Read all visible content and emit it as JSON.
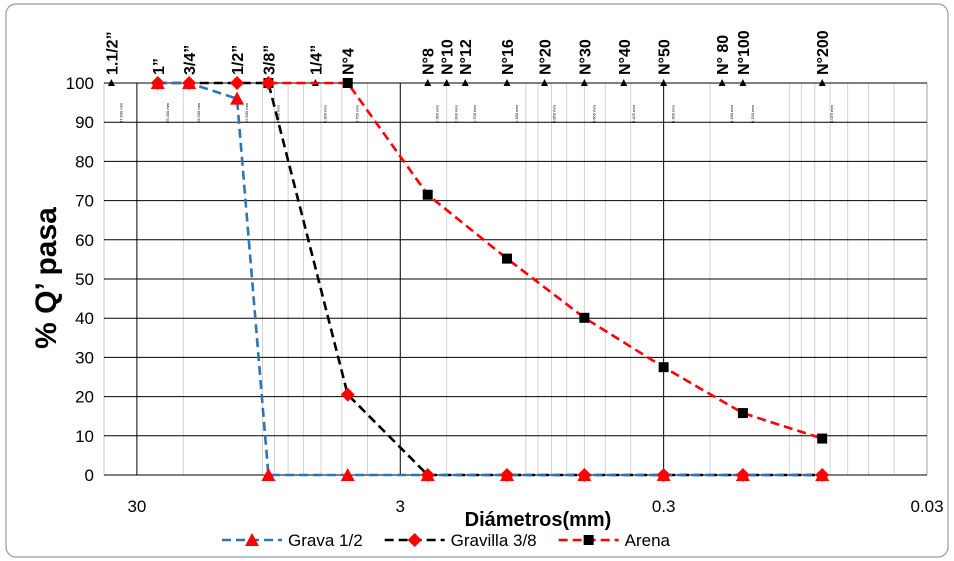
{
  "chart_data": {
    "type": "line",
    "title": "",
    "xlabel": "Diámetros(mm)",
    "ylabel": "% Q’ pasa",
    "x_scale": "log",
    "x_reversed": true,
    "xlim": [
      40,
      0.03
    ],
    "ylim": [
      0,
      100
    ],
    "x_ticks": [
      {
        "value": 30,
        "label": "30"
      },
      {
        "value": 3,
        "label": "3"
      },
      {
        "value": 0.3,
        "label": "0.3"
      },
      {
        "value": 0.03,
        "label": "0.03"
      }
    ],
    "y_ticks": [
      0,
      10,
      20,
      30,
      40,
      50,
      60,
      70,
      80,
      90,
      100
    ],
    "grid": true,
    "legend_position": "bottom",
    "sieves": [
      {
        "label": "1.1/2”",
        "mm": 37.5,
        "mm_label": "37.500 mm"
      },
      {
        "label": "1”",
        "mm": 25.0,
        "mm_label": "25.000 mm"
      },
      {
        "label": "3/4”",
        "mm": 19.0,
        "mm_label": "19.000 mm"
      },
      {
        "label": "1/2”",
        "mm": 12.5,
        "mm_label": "12.500 mm"
      },
      {
        "label": "3/8”",
        "mm": 9.5,
        "mm_label": "9.500 mm"
      },
      {
        "label": "1/4”",
        "mm": 6.3,
        "mm_label": "6.300 mm"
      },
      {
        "label": "N°4",
        "mm": 4.75,
        "mm_label": "4.750 mm"
      },
      {
        "label": "N°8",
        "mm": 2.36,
        "mm_label": "2.360 mm"
      },
      {
        "label": "N°10",
        "mm": 2.0,
        "mm_label": "2.000 mm"
      },
      {
        "label": "N°12",
        "mm": 1.7,
        "mm_label": "1.700 mm"
      },
      {
        "label": "N°16",
        "mm": 1.18,
        "mm_label": "1.180 mm"
      },
      {
        "label": "N°20",
        "mm": 0.85,
        "mm_label": "0.850 mm"
      },
      {
        "label": "N°30",
        "mm": 0.6,
        "mm_label": "0.600 mm"
      },
      {
        "label": "N°40",
        "mm": 0.425,
        "mm_label": "0.425 mm"
      },
      {
        "label": "N°50",
        "mm": 0.3,
        "mm_label": "0.300 mm"
      },
      {
        "label": "N° 80",
        "mm": 0.18,
        "mm_label": "0.180 mm"
      },
      {
        "label": "N°100",
        "mm": 0.15,
        "mm_label": "0.150 mm"
      },
      {
        "label": "N°200",
        "mm": 0.075,
        "mm_label": "0.075 mm"
      }
    ],
    "series": [
      {
        "name": "Grava 1/2",
        "color": "#2e75b6",
        "marker": "triangle",
        "marker_color": "#ff0000",
        "points": [
          [
            25.0,
            100
          ],
          [
            19.0,
            100
          ],
          [
            12.5,
            96
          ],
          [
            9.5,
            0
          ],
          [
            4.75,
            0
          ],
          [
            2.36,
            0
          ],
          [
            1.18,
            0
          ],
          [
            0.6,
            0
          ],
          [
            0.3,
            0
          ],
          [
            0.15,
            0
          ],
          [
            0.075,
            0
          ]
        ]
      },
      {
        "name": "Gravilla 3/8",
        "color": "#000000",
        "marker": "diamond",
        "marker_color": "#ff0000",
        "points": [
          [
            25.0,
            100
          ],
          [
            19.0,
            100
          ],
          [
            12.5,
            100
          ],
          [
            9.5,
            100
          ],
          [
            4.75,
            20.5
          ],
          [
            2.36,
            0
          ],
          [
            1.18,
            0
          ],
          [
            0.6,
            0
          ],
          [
            0.3,
            0
          ],
          [
            0.15,
            0
          ],
          [
            0.075,
            0
          ]
        ]
      },
      {
        "name": "Arena",
        "color": "#ff0000",
        "marker": "square",
        "marker_color": "#000000",
        "points": [
          [
            9.5,
            100
          ],
          [
            4.75,
            100
          ],
          [
            2.36,
            71.5
          ],
          [
            1.18,
            55.2
          ],
          [
            0.6,
            40.1
          ],
          [
            0.3,
            27.5
          ],
          [
            0.15,
            15.8
          ],
          [
            0.075,
            9.3
          ]
        ]
      }
    ]
  }
}
